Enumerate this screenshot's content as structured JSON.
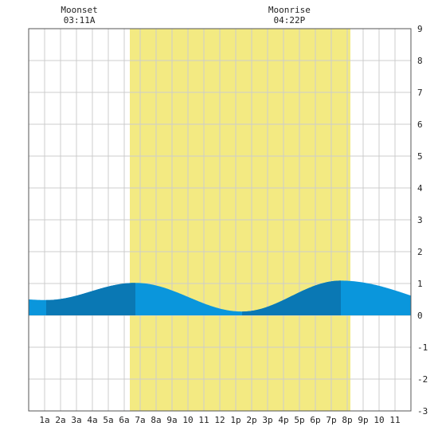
{
  "chart_data": {
    "type": "area",
    "title": "",
    "xlabel": "",
    "ylabel": "",
    "x_tick_labels": [
      "1a",
      "2a",
      "3a",
      "4a",
      "5a",
      "6a",
      "7a",
      "8a",
      "9a",
      "10",
      "11",
      "12",
      "1p",
      "2p",
      "3p",
      "4p",
      "5p",
      "6p",
      "7p",
      "8p",
      "9p",
      "10",
      "11"
    ],
    "x_tick_hours": [
      1,
      2,
      3,
      4,
      5,
      6,
      7,
      8,
      9,
      10,
      11,
      12,
      13,
      14,
      15,
      16,
      17,
      18,
      19,
      20,
      21,
      22,
      23
    ],
    "xlim_hours": [
      0,
      24
    ],
    "ylim": [
      -3,
      9
    ],
    "y_ticks": [
      -3,
      -2,
      -1,
      0,
      1,
      2,
      3,
      4,
      5,
      6,
      7,
      8,
      9
    ],
    "grid": true,
    "daylight_hours": [
      6.35,
      20.2
    ],
    "daylight_color": "#f3ea82",
    "tide_color_light": "#0a96dc",
    "tide_color_dark": "#0a78b4",
    "tide_extremes": [
      {
        "hour": 1.1,
        "height": 0.48,
        "kind": "low"
      },
      {
        "hour": 6.7,
        "height": 1.02,
        "kind": "high"
      },
      {
        "hour": 13.4,
        "height": 0.12,
        "kind": "low"
      },
      {
        "hour": 19.6,
        "height": 1.09,
        "kind": "high"
      }
    ],
    "tide_start": {
      "hour": 0,
      "height": 0.5
    },
    "tide_end": {
      "hour": 24,
      "height": 0.62
    },
    "dark_bands": [
      [
        1.1,
        6.7
      ],
      [
        13.4,
        19.6
      ]
    ],
    "annotations": [
      {
        "label": "Moonset",
        "time": "03:11A",
        "hour": 3.18
      },
      {
        "label": "Moonrise",
        "time": "04:22P",
        "hour": 16.37
      }
    ]
  }
}
